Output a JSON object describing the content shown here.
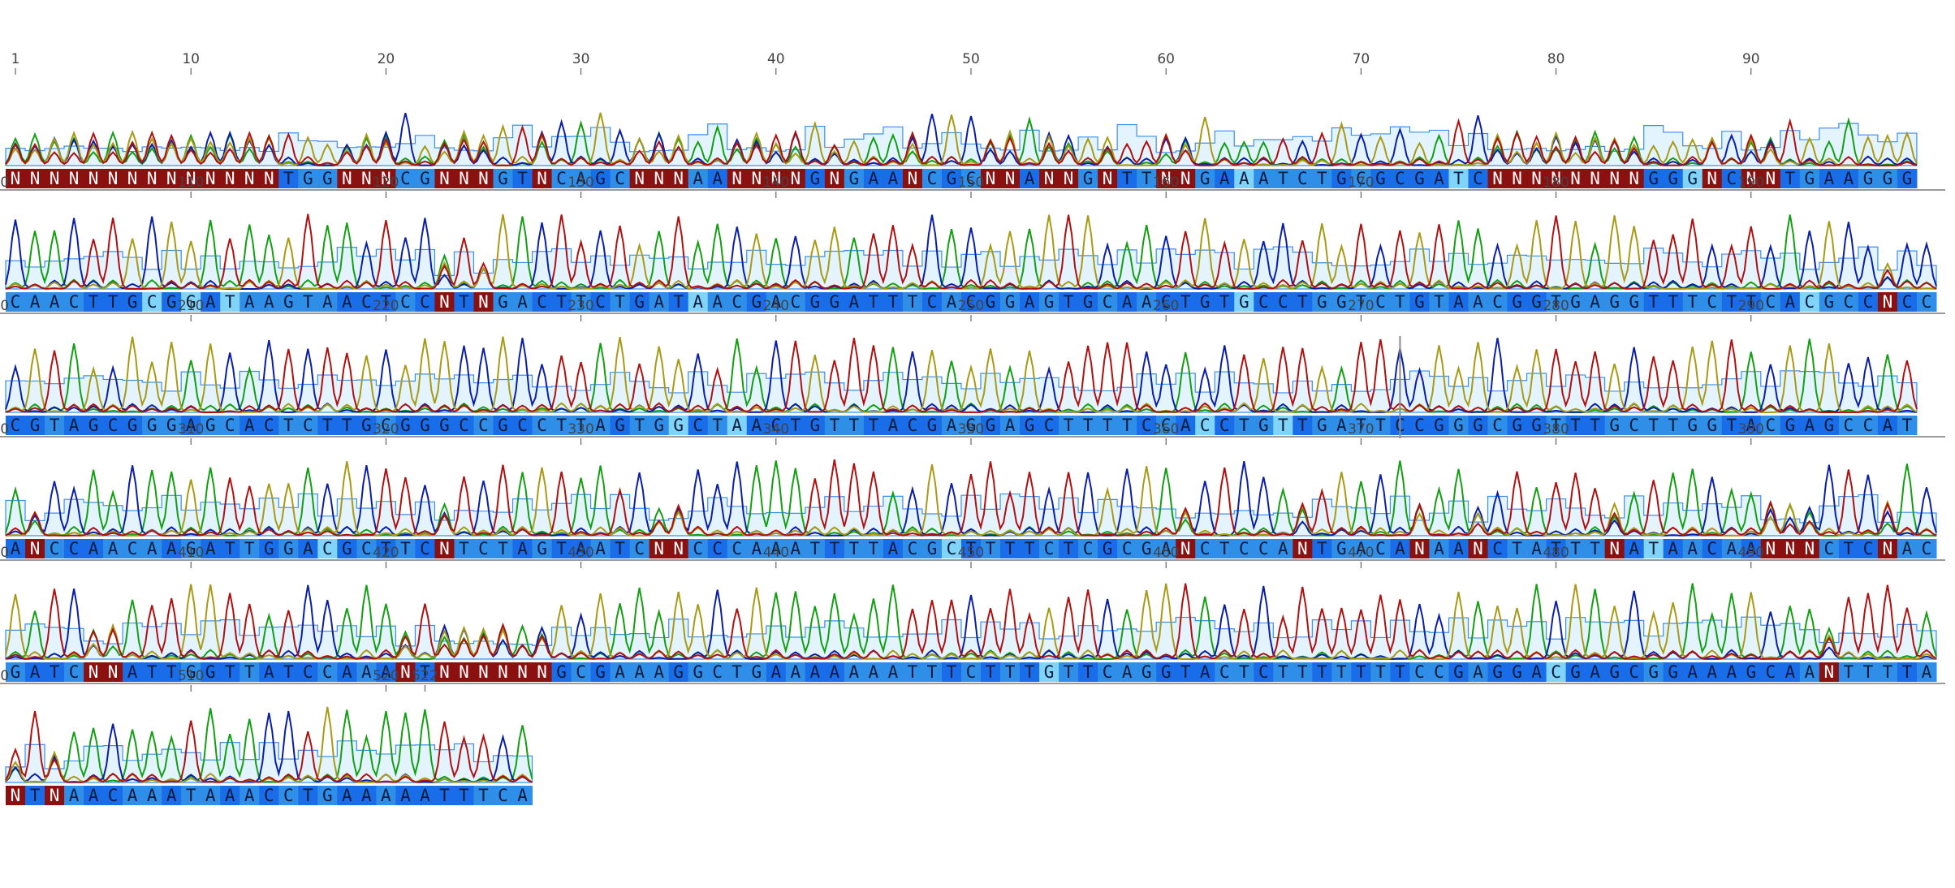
{
  "sequence": {
    "length": 522,
    "bases_per_row": 100,
    "rows": [
      "NNNNNNNNNNNNNNTGGNNNCGNNNGTNCAGCNNNAANNNNGNGAANCGCNNANNGNTTNNGAAATCTGCGCGATCNNNNNNNNGGGNCNNTGAAGGG",
      "CAACTTGCGGATAAGTAACTCCNTNGACTTCTGATAACGACGGATTTCACGGAGTGCAACTGTGCCTGGTCTGTAACGGTGAGGTTTCTTCACGCCNCC",
      "CGTAGCGGGAGCACTCTTGCGGGCCGCCTTAGTGGCTAACTGTTTACGAGGAGCTTTTCCACCTGTTGATTCCGGGCGGTTTGCTTGGTACGAGCCAT",
      "ANCCAACAAGATTGGACGCTTCNTCTAGTAATCNNCCCAAATTTTACGCTTTTCTCGCGANCTCCANTGACANAANCTATTTNATAACAANNNCTCNAC",
      "GATCNNATTGGTTATCCAAANTNNNNNNGCGAAAGGCTGAAAAAAATTTCTTTGTTCAGGTACTCTTTTTTTCCGAGGACGAGCGGAAAGCAANTTTTA",
      "NTNAACAAATAAACCTGAAAAATTTCA"
    ]
  },
  "ruler": {
    "rows": [
      [
        "1",
        "10",
        "20",
        "30",
        "40",
        "50",
        "60",
        "70",
        "80",
        "90"
      ],
      [
        "100",
        "110",
        "120",
        "130",
        "140",
        "150",
        "160",
        "170",
        "180",
        "190"
      ],
      [
        "200",
        "210",
        "220",
        "230",
        "240",
        "250",
        "260",
        "270",
        "280",
        "290"
      ],
      [
        "300",
        "310",
        "320",
        "330",
        "340",
        "350",
        "360",
        "370",
        "380",
        "390"
      ],
      [
        "400",
        "410",
        "420",
        "430",
        "440",
        "450",
        "460",
        "470",
        "480",
        "490"
      ],
      [
        "500",
        "510",
        "520",
        "522"
      ]
    ]
  },
  "cursor_position": 272,
  "colors": {
    "trace_A": "#12a012",
    "trace_C": "#0a1fa8",
    "trace_G": "#a89a14",
    "trace_T": "#b01010",
    "quality_bar_fill": "#e3f4ff",
    "quality_bar_stroke": "#3a8ef0",
    "base_high": "#1a6de8",
    "base_mid": "#2f8fe8",
    "base_low": "#7fd4f8",
    "base_n": "#8b1010",
    "background": "#ffffff"
  }
}
